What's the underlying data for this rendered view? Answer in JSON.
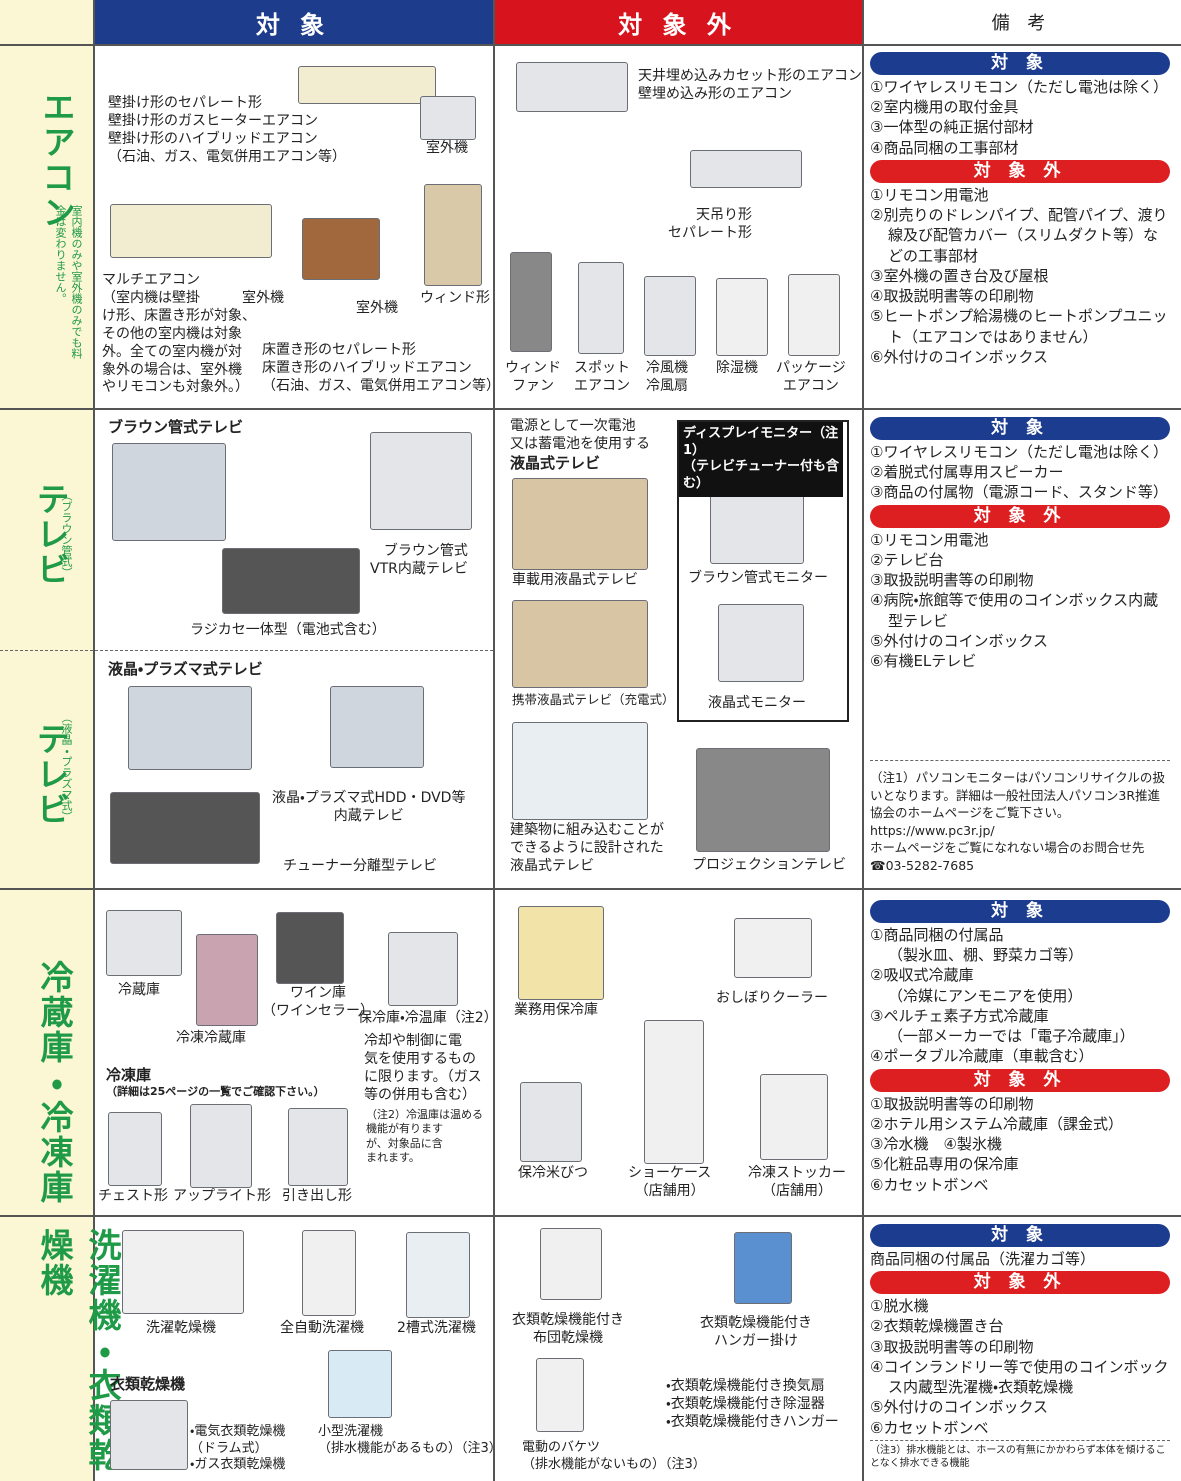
{
  "header": {
    "target": "対 象",
    "excluded": "対 象 外",
    "notes": "備 考"
  },
  "sections": {
    "aircon": {
      "label": "エアコン",
      "sublabel": "室内機のみや室外機のみでも料金は変わりません。",
      "target": [
        "壁掛け形のセパレート形\n壁掛け形のガスヒーターエアコン\n壁掛け形のハイブリッドエアコン\n（石油、ガス、電気併用エアコン等）",
        "室外機",
        "マルチエアコン\n（室内機は壁掛\nけ形、床置き形が対象、\nその他の室内機は対象\n外。全ての室内機が対\n象外の場合は、室外機\nやリモコンも対象外。）",
        "室外機",
        "室外機",
        "ウィンド形",
        "床置き形のセパレート形\n床置き形のハイブリッドエアコン\n（石油、ガス、電気併用エアコン等）"
      ],
      "excluded": [
        "天井埋め込みカセット形のエアコン\n壁埋め込み形のエアコン",
        "天吊り形\nセパレート形",
        "ウィンド\nファン",
        "スポット\nエアコン",
        "冷風機\n冷風扇",
        "除湿機",
        "パッケージ\nエアコン"
      ],
      "notes": {
        "target_heading": "対 象",
        "target": [
          "①ワイヤレスリモコン（ただし電池は除く）",
          "②室内機用の取付金具",
          "③一体型の純正据付部材",
          "④商品同梱の工事部材"
        ],
        "excluded_heading": "対 象 外",
        "excluded": [
          "①リモコン用電池",
          "②別売りのドレンパイプ、配管パイプ、渡り線及び配管カバー（スリムダクト等）などの工事部材",
          "③室外機の置き台及び屋根",
          "④取扱説明書等の印刷物",
          "⑤ヒートポンプ給湯機のヒートポンプユニット（エアコンではありません）",
          "⑥外付けのコインボックス"
        ]
      }
    },
    "tv_crt": {
      "label": "テレビ",
      "sublabel": "（ブラウン管式）",
      "target": [
        "ブラウン管式テレビ",
        "ブラウン管式\nVTR内蔵テレビ",
        "ラジカセ一体型（電池式含む）"
      ]
    },
    "tv_flat": {
      "label": "テレビ",
      "sublabel": "（液晶・プラズマ式）",
      "target": [
        "液晶・プラズマ式テレビ",
        "液晶・プラズマ式HDD・DVD等\n内蔵テレビ",
        "チューナー分離型テレビ"
      ]
    },
    "tv": {
      "excluded": [
        "電源として一次電池\n又は蓄電池を使用する",
        "液晶式テレビ",
        "車載用液晶式テレビ",
        "携帯液晶式テレビ（充電式）",
        "建築物に組み込むことが\nできるように設計された\n液晶式テレビ",
        "ディスプレイモニター（注1）\n（テレビチューナー付も含む）",
        "ブラウン管式モニター",
        "液晶式モニター",
        "プロジェクションテレビ"
      ],
      "notes": {
        "target_heading": "対 象",
        "target": [
          "①ワイヤレスリモコン（ただし電池は除く）",
          "②着脱式付属専用スピーカー",
          "③商品の付属物（電源コード、スタンド等）"
        ],
        "excluded_heading": "対 象 外",
        "excluded": [
          "①リモコン用電池",
          "②テレビ台",
          "③取扱説明書等の印刷物",
          "④病院・旅館等で使用のコインボックス内蔵型テレビ",
          "⑤外付けのコインボックス",
          "⑥有機ELテレビ"
        ],
        "footnote": "（注1）パソコンモニターはパソコンリサイクルの扱いとなります。詳細は一般社団法人パソコン3R推進協会のホームページをご覧下さい。\nhttps://www.pc3r.jp/\nホームページをご覧になれない場合のお問合せ先\n☎03-5282-7685"
      }
    },
    "fridge": {
      "label": "冷蔵庫・冷凍庫",
      "target": [
        "冷蔵庫",
        "冷凍冷蔵庫",
        "ワイン庫\n（ワインセラー）",
        "保冷庫・冷温庫（注2）",
        "冷却や制御に電\n気を使用するもの\nに限ります。（ガス\n等の併用も含む）",
        "（注2）冷温庫は温める\n機能が有ります\nが、対象品に含\nまれます。",
        "冷凍庫",
        "（詳細は25ページの一覧でご確認下さい。）",
        "チェスト形",
        "アップライト形",
        "引き出し形"
      ],
      "excluded": [
        "業務用保冷庫",
        "おしぼりクーラー",
        "保冷米びつ",
        "ショーケース\n（店舗用）",
        "冷凍ストッカー\n（店舗用）"
      ],
      "notes": {
        "target_heading": "対 象",
        "target": [
          "①商品同梱の付属品\n（製氷皿、棚、野菜カゴ等）",
          "②吸収式冷蔵庫\n（冷媒にアンモニアを使用）",
          "③ペルチェ素子方式冷蔵庫\n（一部メーカーでは「電子冷蔵庫」）",
          "④ポータブル冷蔵庫（車載含む）"
        ],
        "excluded_heading": "対 象 外",
        "excluded": [
          "①取扱説明書等の印刷物",
          "②ホテル用システム冷蔵庫（課金式）",
          "③冷水機　④製氷機",
          "⑤化粧品専用の保冷庫",
          "⑥カセットボンベ"
        ]
      }
    },
    "washer": {
      "label": "洗濯機・衣類乾燥機",
      "target": [
        "洗濯乾燥機",
        "全自動洗濯機",
        "2槽式洗濯機",
        "衣類乾燥機",
        "・電気衣類乾燥機\n（ドラム式）\n・ガス衣類乾燥機",
        "小型洗濯機\n（排水機能があるもの）（注3）"
      ],
      "excluded": [
        "衣類乾燥機能付き\n布団乾燥機",
        "衣類乾燥機能付き\nハンガー掛け",
        "・衣類乾燥機能付き換気扇\n・衣類乾燥機能付き除湿器\n・衣類乾燥機能付きハンガー",
        "電動のバケツ\n（排水機能がないもの）（注3）"
      ],
      "notes": {
        "target_heading": "対 象",
        "target": [
          "商品同梱の付属品（洗濯カゴ等）"
        ],
        "excluded_heading": "対 象 外",
        "excluded": [
          "①脱水機",
          "②衣類乾燥機置き台",
          "③取扱説明書等の印刷物",
          "④コインランドリー等で使用のコインボックス内蔵型洗濯機・衣類乾燥機",
          "⑤外付けのコインボックス",
          "⑥カセットボンベ"
        ],
        "footnote": "（注3）排水機能とは、ホースの有無にかかわらず本体を傾けることなく排水できる機能"
      }
    }
  }
}
